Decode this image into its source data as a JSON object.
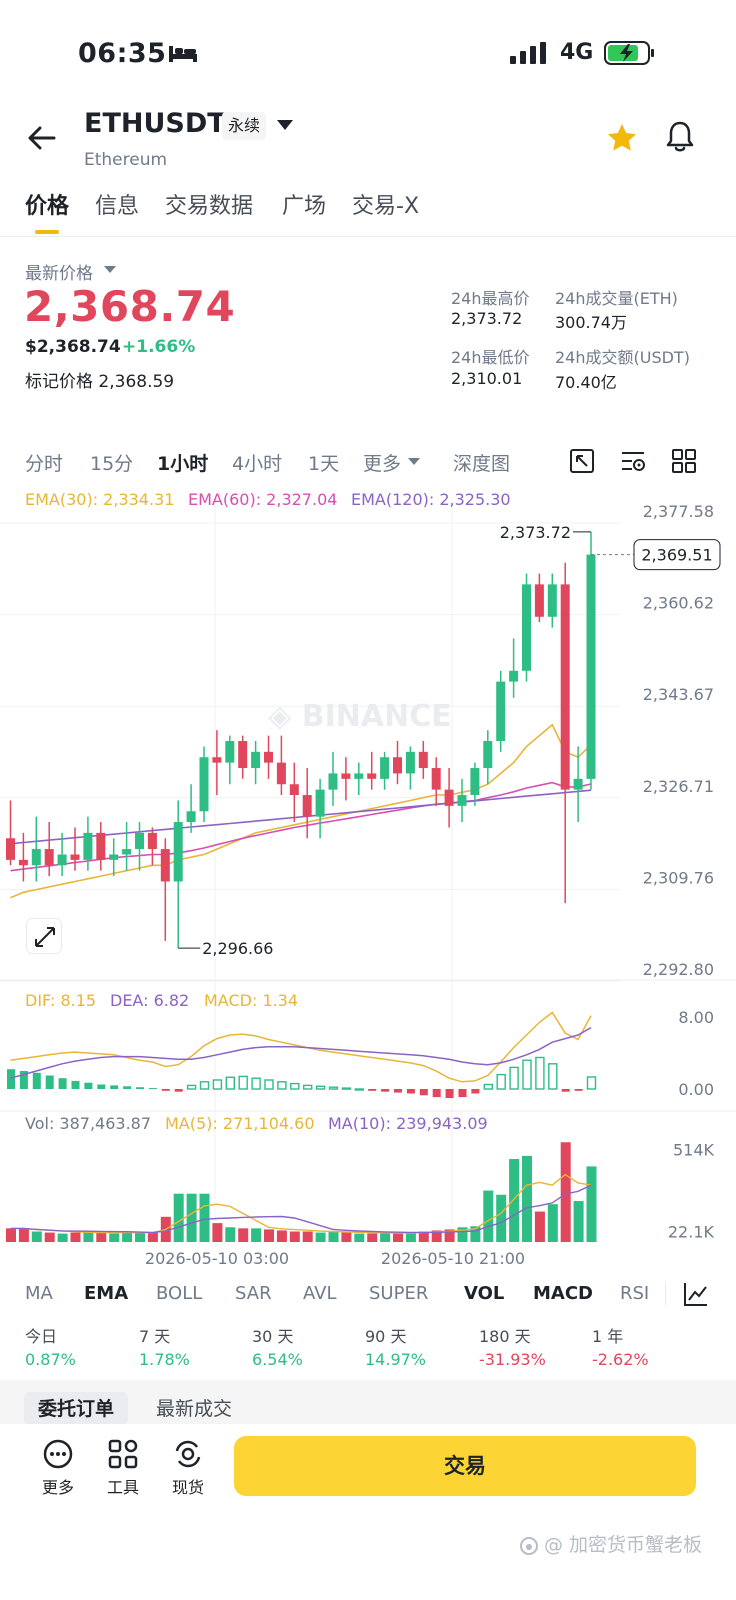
{
  "status_bar": {
    "time": "06:35",
    "network": "4G"
  },
  "header": {
    "symbol": "ETHUSDT",
    "tag": "永续",
    "subtitle": "Ethereum"
  },
  "tabs": [
    {
      "label": "价格",
      "active": true
    },
    {
      "label": "信息"
    },
    {
      "label": "交易数据"
    },
    {
      "label": "广场"
    },
    {
      "label": "交易-X"
    }
  ],
  "price": {
    "label": "最新价格",
    "last": "2,368.74",
    "usd": "$2,368.74",
    "change": "+1.66%",
    "mark_label": "标记价格",
    "mark": "2,368.59"
  },
  "stats": {
    "high_label": "24h最高价",
    "high": "2,373.72",
    "vol_eth_label": "24h成交量(ETH)",
    "vol_eth": "300.74万",
    "low_label": "24h最低价",
    "low": "2,310.01",
    "vol_usdt_label": "24h成交额(USDT)",
    "vol_usdt": "70.40亿"
  },
  "intervals": [
    "分时",
    "15分",
    "1小时",
    "4小时",
    "1天",
    "更多",
    "深度图"
  ],
  "active_interval": "1小时",
  "legends": {
    "ema30": "EMA(30): 2,334.31",
    "ema60": "EMA(60): 2,327.04",
    "ema120": "EMA(120): 2,325.30",
    "dif": "DIF: 8.15",
    "dea": "DEA: 6.82",
    "macd": "MACD: 1.34",
    "vol": "Vol: 387,463.87",
    "vma5": "MA(5): 271,104.60",
    "vma10": "MA(10): 239,943.09"
  },
  "colors": {
    "up": "#2ebd85",
    "down": "#e0475c",
    "accent": "#fcd535",
    "ema30": "#e8b637",
    "ema60": "#d64fb5",
    "ema120": "#8a63c4"
  },
  "chart_data": {
    "type": "candlestick",
    "price_axis": [
      "2,377.58",
      "2,360.62",
      "2,343.67",
      "2,326.71",
      "2,309.76",
      "2,292.80"
    ],
    "price_range": [
      2292.8,
      2377.58
    ],
    "current_price_label": "2,369.51",
    "high_label": "2,373.72",
    "low_label": "2,296.66",
    "macd_axis": [
      "8.00",
      "0.00"
    ],
    "volume_axis": [
      "514K",
      "22.1K"
    ],
    "x_labels": [
      "2026-05-10 03:00",
      "2026-05-10 21:00"
    ],
    "candles": [
      [
        2317,
        2324,
        2312,
        2313
      ],
      [
        2313,
        2318,
        2309,
        2312
      ],
      [
        2312,
        2321,
        2309,
        2315
      ],
      [
        2315,
        2320,
        2310,
        2312
      ],
      [
        2312,
        2318,
        2310,
        2314
      ],
      [
        2314,
        2319,
        2311,
        2313
      ],
      [
        2313,
        2321,
        2311,
        2318
      ],
      [
        2318,
        2320,
        2311,
        2313
      ],
      [
        2313,
        2317,
        2310,
        2314
      ],
      [
        2314,
        2320,
        2311,
        2315
      ],
      [
        2315,
        2320,
        2311,
        2318
      ],
      [
        2318,
        2319,
        2312,
        2315
      ],
      [
        2315,
        2317,
        2298,
        2309
      ],
      [
        2309,
        2324,
        2296.66,
        2320
      ],
      [
        2320,
        2327,
        2318,
        2322
      ],
      [
        2322,
        2334,
        2320,
        2332
      ],
      [
        2332,
        2337,
        2325,
        2331
      ],
      [
        2331,
        2336,
        2327,
        2335
      ],
      [
        2335,
        2336,
        2328,
        2330
      ],
      [
        2330,
        2335,
        2327,
        2333
      ],
      [
        2333,
        2336,
        2328,
        2331
      ],
      [
        2331,
        2336,
        2325,
        2327
      ],
      [
        2327,
        2331,
        2320,
        2325
      ],
      [
        2325,
        2330,
        2317,
        2321
      ],
      [
        2321,
        2328,
        2317,
        2326
      ],
      [
        2326,
        2333,
        2323,
        2329
      ],
      [
        2329,
        2332,
        2324,
        2328
      ],
      [
        2328,
        2331,
        2325,
        2329
      ],
      [
        2329,
        2333,
        2326,
        2328
      ],
      [
        2328,
        2333,
        2326,
        2332
      ],
      [
        2332,
        2335,
        2327,
        2329
      ],
      [
        2329,
        2334,
        2326,
        2333
      ],
      [
        2333,
        2335,
        2328,
        2330
      ],
      [
        2330,
        2332,
        2323,
        2326
      ],
      [
        2326,
        2330,
        2319,
        2323
      ],
      [
        2323,
        2328,
        2320,
        2325
      ],
      [
        2325,
        2331,
        2323,
        2330
      ],
      [
        2330,
        2337,
        2327,
        2335
      ],
      [
        2335,
        2348,
        2333,
        2346
      ],
      [
        2346,
        2354,
        2343,
        2348
      ],
      [
        2348,
        2366,
        2346,
        2364
      ],
      [
        2364,
        2366,
        2357,
        2358
      ],
      [
        2358,
        2366,
        2356,
        2364
      ],
      [
        2364,
        2368,
        2305,
        2326
      ],
      [
        2326,
        2334,
        2320,
        2328
      ],
      [
        2328,
        2373.72,
        2326,
        2369.51
      ]
    ],
    "ema30": [
      2306,
      2307,
      2307.5,
      2308,
      2308.5,
      2309,
      2309.5,
      2310,
      2310.5,
      2311,
      2311.5,
      2312,
      2312,
      2313,
      2313.5,
      2314,
      2315,
      2316,
      2317,
      2318,
      2318.5,
      2319,
      2319.5,
      2320,
      2320.5,
      2321,
      2321.5,
      2322,
      2322.5,
      2323,
      2323.5,
      2324,
      2324.5,
      2325,
      2325,
      2325.5,
      2326,
      2327,
      2329,
      2331,
      2334,
      2336,
      2338,
      2333,
      2332,
      2334.31
    ],
    "ema60": [
      2311,
      2311.3,
      2311.6,
      2311.9,
      2312.2,
      2312.5,
      2312.8,
      2313.1,
      2313.4,
      2313.6,
      2313.8,
      2314,
      2314,
      2314.3,
      2314.7,
      2315.2,
      2315.8,
      2316.4,
      2317,
      2317.5,
      2318,
      2318.5,
      2319,
      2319.4,
      2319.8,
      2320.2,
      2320.6,
      2321,
      2321.4,
      2321.8,
      2322.2,
      2322.6,
      2323,
      2323.3,
      2323.5,
      2323.8,
      2324,
      2324.5,
      2325,
      2325.6,
      2326.3,
      2326.8,
      2327.3,
      2326.5,
      2326.5,
      2327.04
    ]
  }
}
